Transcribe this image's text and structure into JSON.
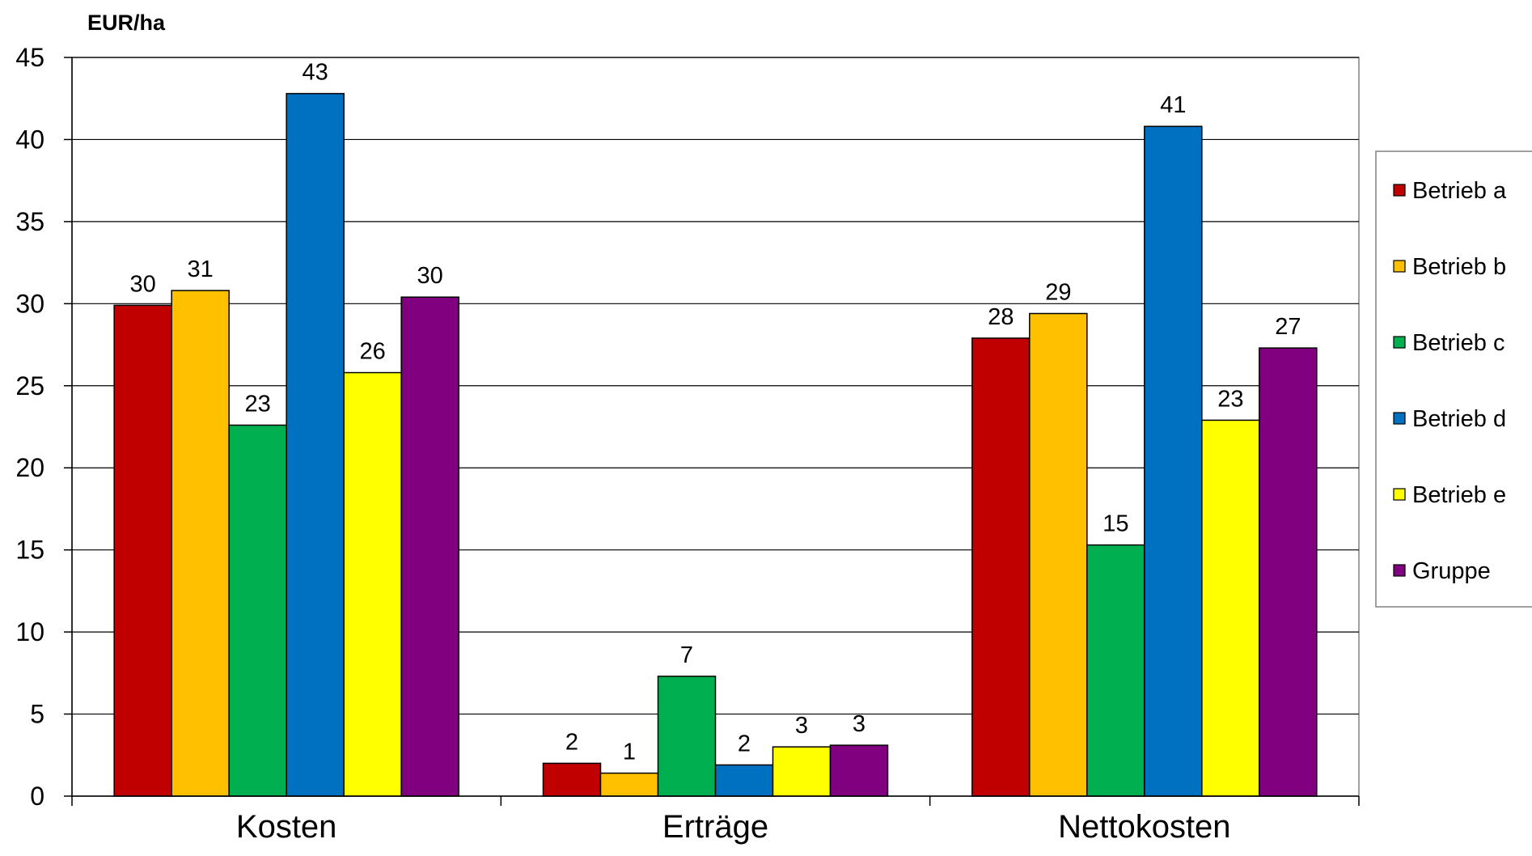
{
  "chart_data": {
    "type": "bar",
    "ylabel": "EUR/ha",
    "ylim": [
      0,
      45
    ],
    "yticks": [
      0,
      5,
      10,
      15,
      20,
      25,
      30,
      35,
      40,
      45
    ],
    "grid": true,
    "legend_position": "right",
    "categories": [
      "Kosten",
      "Erträge",
      "Nettokosten"
    ],
    "series": [
      {
        "name": "Betrieb a",
        "color": "#C00000",
        "values": [
          29.9,
          2.0,
          27.9
        ],
        "labels": [
          "30",
          "2",
          "28"
        ]
      },
      {
        "name": "Betrieb b",
        "color": "#FFC000",
        "values": [
          30.8,
          1.4,
          29.4
        ],
        "labels": [
          "31",
          "1",
          "29"
        ]
      },
      {
        "name": "Betrieb c",
        "color": "#00B050",
        "values": [
          22.6,
          7.3,
          15.3
        ],
        "labels": [
          "23",
          "7",
          "15"
        ]
      },
      {
        "name": "Betrieb d",
        "color": "#0070C0",
        "values": [
          42.8,
          1.9,
          40.8
        ],
        "labels": [
          "43",
          "2",
          "41"
        ]
      },
      {
        "name": "Betrieb e",
        "color": "#FFFF00",
        "values": [
          25.8,
          3.0,
          22.9
        ],
        "labels": [
          "26",
          "3",
          "23"
        ]
      },
      {
        "name": "Gruppe",
        "color": "#800080",
        "values": [
          30.4,
          3.1,
          27.3
        ],
        "labels": [
          "30",
          "3",
          "27"
        ]
      }
    ]
  }
}
